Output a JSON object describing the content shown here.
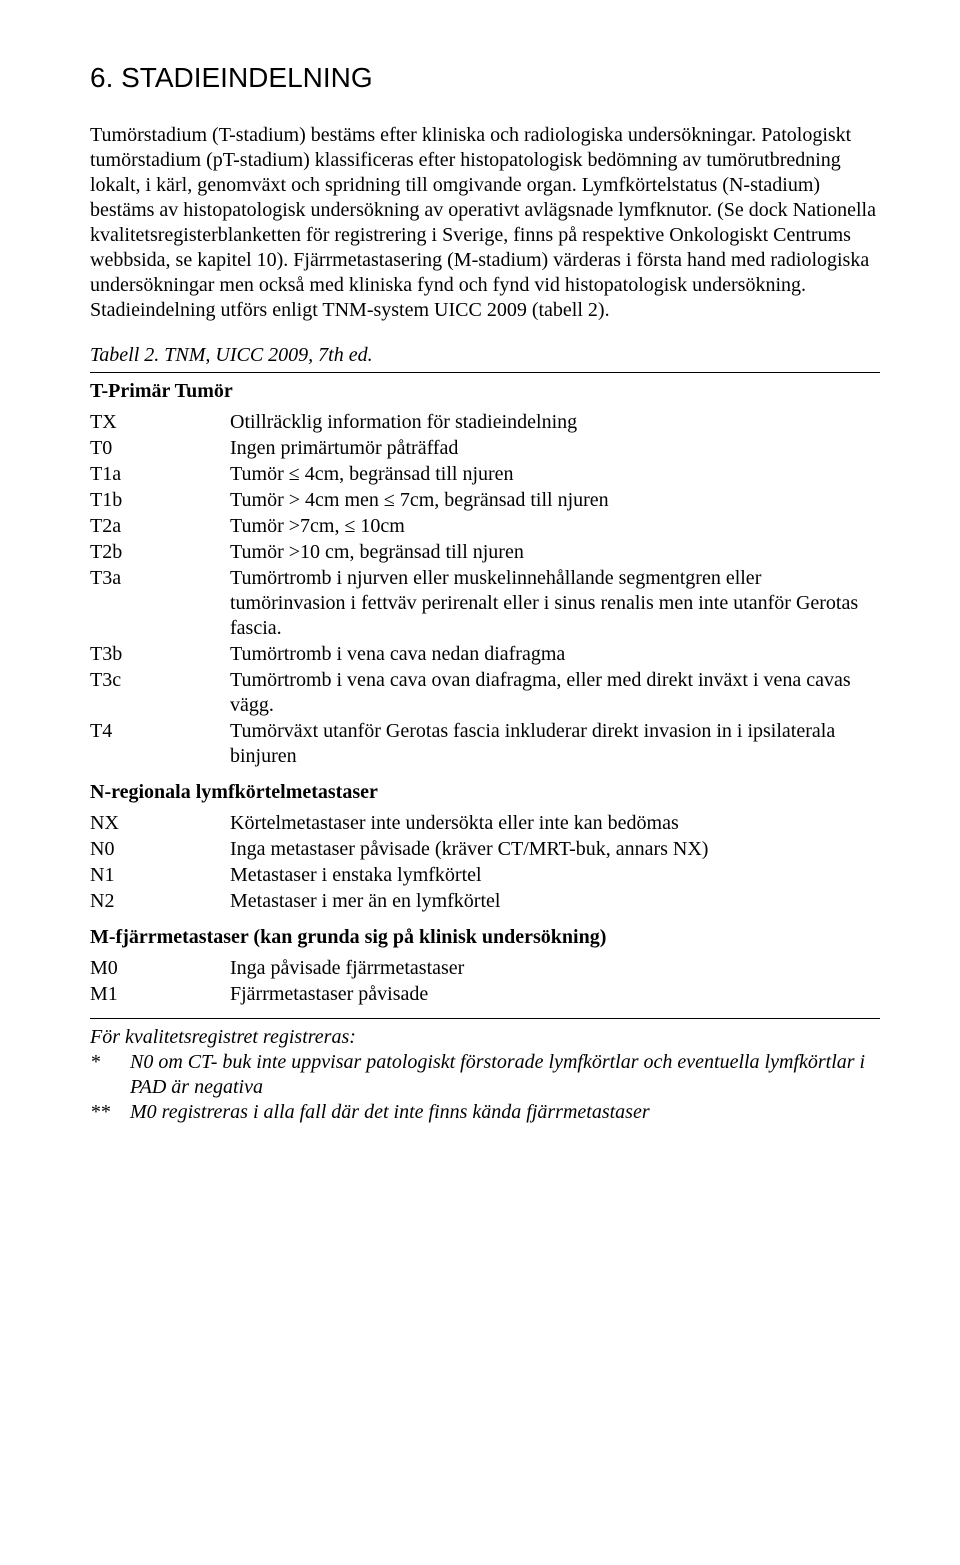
{
  "colors": {
    "text": "#000000",
    "background": "#ffffff",
    "rule": "#000000"
  },
  "heading": "6. STADIEINDELNING",
  "body_paragraph": "Tumörstadium (T-stadium) bestäms efter kliniska och radiologiska undersökningar. Patologiskt tumörstadium (pT-stadium) klassificeras efter histopatologisk bedömning av tumörutbredning lokalt, i kärl, genomväxt och spridning till omgivande organ. Lymfkörtelstatus (N-stadium) bestäms av histopatologisk undersökning av operativt avlägsnade lymfknutor. (Se dock Nationella kvalitetsregisterblanketten för registrering i Sverige, finns på respektive Onkologiskt Centrums webbsida, se kapitel 10). Fjärrmetastasering (M-stadium) värderas i första hand med radiologiska undersökningar men också med kliniska fynd och fynd vid histopatologisk undersökning. Stadieindelning utförs enligt TNM-system UICC 2009 (tabell 2).",
  "table_caption": "Tabell 2. TNM, UICC 2009, 7th ed.",
  "t_section": {
    "title": "T-Primär Tumör",
    "rows": [
      {
        "code": "TX",
        "desc": "Otillräcklig information för stadieindelning"
      },
      {
        "code": "T0",
        "desc": "Ingen primärtumör påträffad"
      },
      {
        "code": "T1a",
        "desc": "Tumör ≤ 4cm, begränsad till njuren"
      },
      {
        "code": "T1b",
        "desc": "Tumör > 4cm men ≤ 7cm, begränsad till njuren"
      },
      {
        "code": "T2a",
        "desc": "Tumör >7cm, ≤ 10cm"
      },
      {
        "code": "T2b",
        "desc": "Tumör >10 cm, begränsad till njuren"
      },
      {
        "code": "T3a",
        "desc": "Tumörtromb i njurven eller muskelinnehållande segmentgren eller tumörinvasion i fettväv perirenalt eller i sinus renalis men inte utanför Gerotas fascia."
      },
      {
        "code": "T3b",
        "desc": "Tumörtromb i vena cava nedan diafragma"
      },
      {
        "code": "T3c",
        "desc": "Tumörtromb i vena cava ovan diafragma, eller med direkt inväxt i vena cavas vägg."
      },
      {
        "code": "T4",
        "desc": "Tumörväxt utanför Gerotas fascia inkluderar direkt  invasion in i ipsilaterala binjuren"
      }
    ]
  },
  "n_section": {
    "title": "N-regionala lymfkörtelmetastaser",
    "rows": [
      {
        "code": "NX",
        "desc": "Körtelmetastaser inte undersökta eller inte kan bedömas"
      },
      {
        "code": "N0",
        "desc": "Inga metastaser påvisade (kräver CT/MRT-buk, annars NX)"
      },
      {
        "code": "N1",
        "desc": "Metastaser i enstaka lymfkörtel"
      },
      {
        "code": "N2",
        "desc": "Metastaser i mer än en lymfkörtel"
      }
    ]
  },
  "m_section": {
    "title": "M-fjärrmetastaser (kan grunda sig på klinisk undersökning)",
    "rows": [
      {
        "code": "M0",
        "desc": "Inga påvisade fjärrmetastaser"
      },
      {
        "code": "M1",
        "desc": "Fjärrmetastaser påvisade"
      }
    ]
  },
  "footnote": {
    "intro": "För kvalitetsregistret registreras:",
    "items": [
      {
        "sym": "*",
        "text": "N0 om CT- buk inte uppvisar patologiskt förstorade lymfkörtlar och eventuella lymfkörtlar i PAD är negativa"
      },
      {
        "sym": "**",
        "text": "M0 registreras i alla fall där det inte finns kända fjärrmetastaser"
      }
    ]
  }
}
